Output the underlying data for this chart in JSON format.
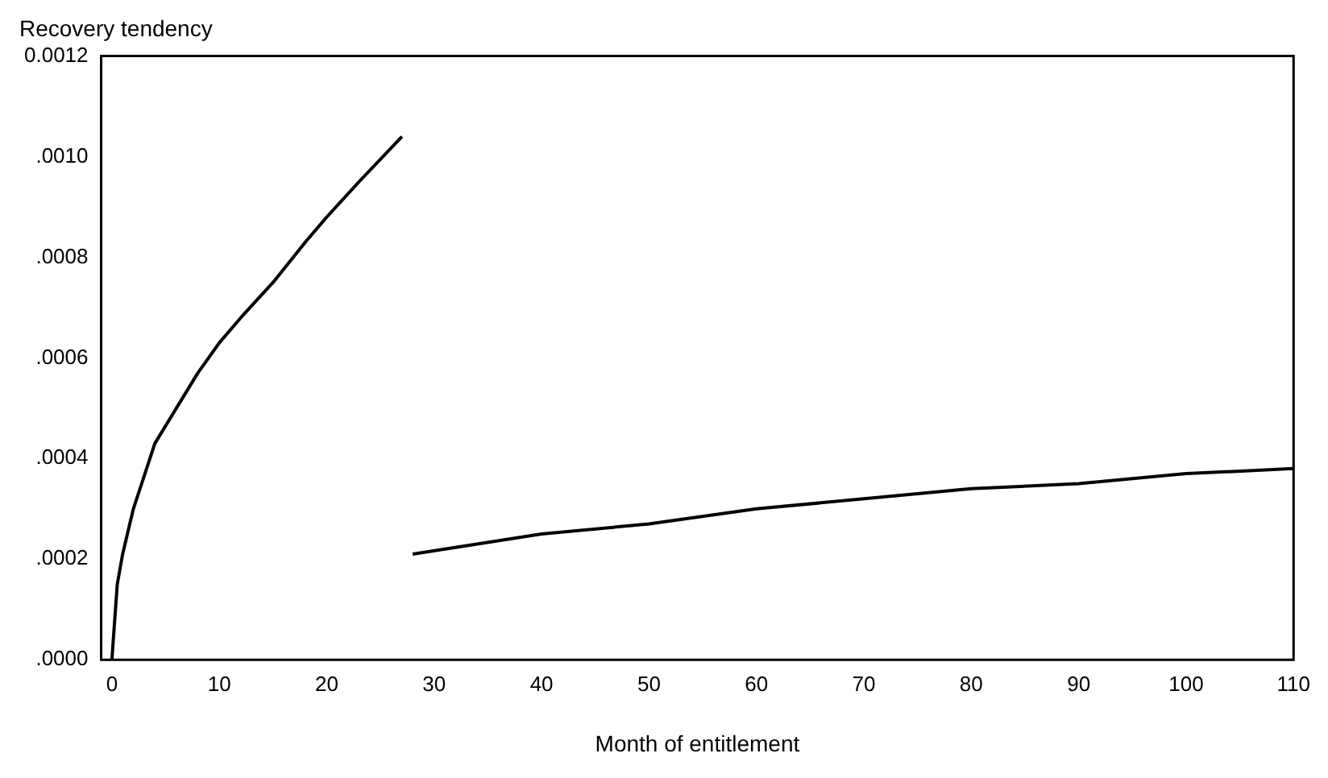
{
  "chart_data": {
    "type": "line",
    "title": "Recovery tendency",
    "xlabel": "Month of entitlement",
    "xlim": [
      -1,
      110
    ],
    "xticks": [
      0,
      10,
      20,
      30,
      40,
      50,
      60,
      70,
      80,
      90,
      100,
      110
    ],
    "ylim": [
      0,
      0.0012
    ],
    "yticks": [
      {
        "value": 0,
        "label": ".0000"
      },
      {
        "value": 0.0002,
        "label": ".0002"
      },
      {
        "value": 0.0004,
        "label": ".0004"
      },
      {
        "value": 0.0006,
        "label": ".0006"
      },
      {
        "value": 0.0008,
        "label": ".0008"
      },
      {
        "value": 0.001,
        "label": ".0010"
      },
      {
        "value": 0.0012,
        "label": "0.0012"
      }
    ],
    "grid": false,
    "legend": false,
    "marker": "none",
    "line_style": "solid",
    "series": [
      {
        "color": "#000000",
        "x": [
          0,
          0.5,
          1,
          2,
          4,
          6,
          8,
          10,
          12,
          15,
          18,
          20,
          23,
          27
        ],
        "values": [
          0,
          0.00015,
          0.00021,
          0.0003,
          0.00043,
          0.0005,
          0.00057,
          0.00063,
          0.00068,
          0.00075,
          0.00083,
          0.00088,
          0.00095,
          0.00104
        ]
      },
      {
        "color": "#000000",
        "x": [
          28,
          40,
          50,
          60,
          70,
          80,
          90,
          100,
          110
        ],
        "values": [
          0.00021,
          0.00025,
          0.00027,
          0.0003,
          0.00032,
          0.00034,
          0.00035,
          0.00037,
          0.00038
        ]
      }
    ]
  }
}
